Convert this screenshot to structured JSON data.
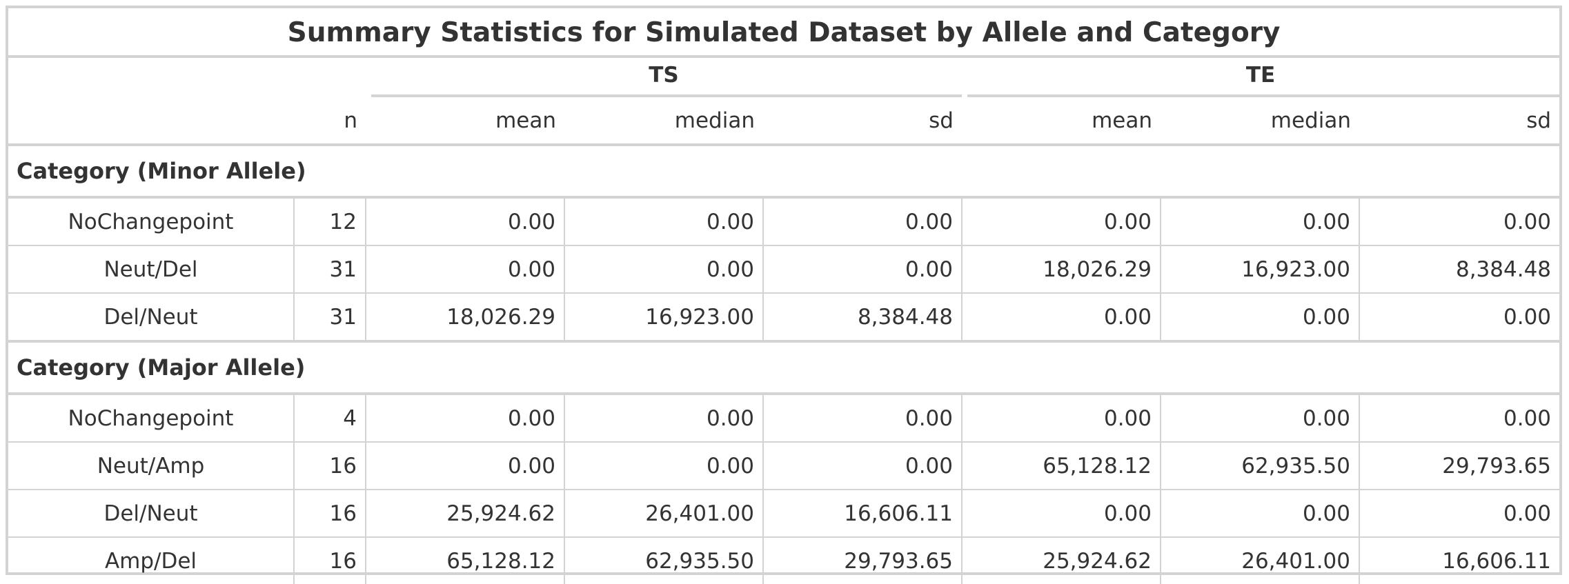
{
  "title": "Summary Statistics for Simulated Dataset by Allele and Category",
  "spanners": [
    {
      "label": "TS"
    },
    {
      "label": "TE"
    }
  ],
  "columns": [
    "",
    "n",
    "mean",
    "median",
    "sd",
    "mean",
    "median",
    "sd"
  ],
  "groups": [
    {
      "label": "Category (Minor Allele)",
      "rows": [
        {
          "label": "NoChangepoint",
          "n": "12",
          "ts_mean": "0.00",
          "ts_median": "0.00",
          "ts_sd": "0.00",
          "te_mean": "0.00",
          "te_median": "0.00",
          "te_sd": "0.00"
        },
        {
          "label": "Neut/Del",
          "n": "31",
          "ts_mean": "0.00",
          "ts_median": "0.00",
          "ts_sd": "0.00",
          "te_mean": "18,026.29",
          "te_median": "16,923.00",
          "te_sd": "8,384.48"
        },
        {
          "label": "Del/Neut",
          "n": "31",
          "ts_mean": "18,026.29",
          "ts_median": "16,923.00",
          "ts_sd": "8,384.48",
          "te_mean": "0.00",
          "te_median": "0.00",
          "te_sd": "0.00"
        }
      ]
    },
    {
      "label": "Category (Major Allele)",
      "rows": [
        {
          "label": "NoChangepoint",
          "n": "4",
          "ts_mean": "0.00",
          "ts_median": "0.00",
          "ts_sd": "0.00",
          "te_mean": "0.00",
          "te_median": "0.00",
          "te_sd": "0.00"
        },
        {
          "label": "Neut/Amp",
          "n": "16",
          "ts_mean": "0.00",
          "ts_median": "0.00",
          "ts_sd": "0.00",
          "te_mean": "65,128.12",
          "te_median": "62,935.50",
          "te_sd": "29,793.65"
        },
        {
          "label": "Del/Neut",
          "n": "16",
          "ts_mean": "25,924.62",
          "ts_median": "26,401.00",
          "ts_sd": "16,606.11",
          "te_mean": "0.00",
          "te_median": "0.00",
          "te_sd": "0.00"
        },
        {
          "label": "Amp/Del",
          "n": "16",
          "ts_mean": "65,128.12",
          "ts_median": "62,935.50",
          "ts_sd": "29,793.65",
          "te_mean": "25,924.62",
          "te_median": "26,401.00",
          "te_sd": "16,606.11"
        }
      ]
    }
  ]
}
